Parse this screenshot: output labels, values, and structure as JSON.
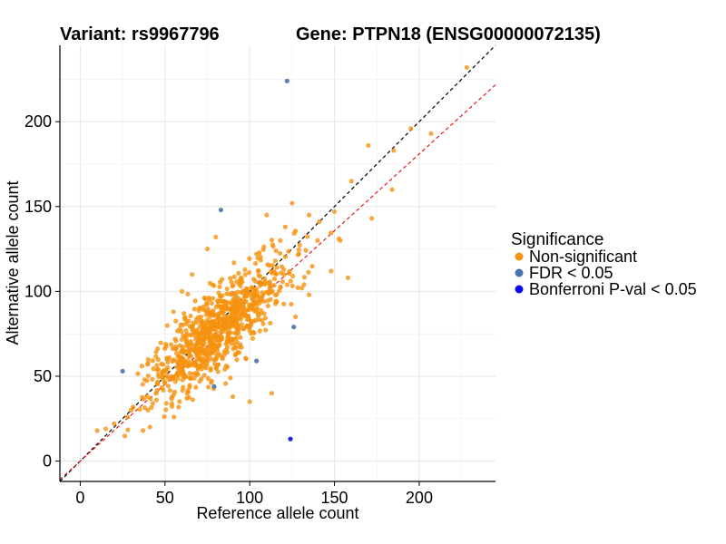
{
  "chart_data": {
    "type": "scatter",
    "title_left": "Variant: rs9967796",
    "title_right": "Gene: PTPN18 (ENSG00000072135)",
    "xlabel": "Reference allele count",
    "ylabel": "Alternative allele count",
    "xlim": [
      -12,
      245
    ],
    "ylim": [
      -12,
      245
    ],
    "xticks": [
      0,
      50,
      100,
      150,
      200
    ],
    "yticks": [
      0,
      50,
      100,
      150,
      200
    ],
    "grid": true,
    "reference_lines": [
      {
        "name": "identity",
        "slope": 1.0,
        "intercept": 0,
        "color": "#000000",
        "style": "dashed"
      },
      {
        "name": "fit",
        "slope": 0.905,
        "intercept": 0,
        "color": "#e41a1c",
        "style": "dashed"
      }
    ],
    "legend": {
      "title": "Significance",
      "placement": "right",
      "entries": [
        {
          "label": "Non-significant",
          "color": "#f5920f"
        },
        {
          "label": "FDR < 0.05",
          "color": "#4a72b0"
        },
        {
          "label": "Bonferroni P-val < 0.05",
          "color": "#0a0af0"
        }
      ]
    },
    "series": [
      {
        "name": "Non-significant",
        "color": "#f5920f",
        "generated_cloud": {
          "n": 880,
          "center": [
            82,
            78
          ],
          "sd_along": 28,
          "sd_across": 9,
          "seed": 7,
          "xmin": 5,
          "xmax": 240,
          "ymin": 10,
          "ymax": 240
        },
        "points": [
          [
            228,
            232
          ],
          [
            195,
            196
          ],
          [
            207,
            193
          ],
          [
            185,
            183
          ],
          [
            170,
            186
          ],
          [
            184,
            160
          ],
          [
            160,
            165
          ],
          [
            125,
            152
          ],
          [
            150,
            147
          ],
          [
            135,
            145
          ],
          [
            158,
            108
          ],
          [
            121,
            138
          ],
          [
            118,
            130
          ],
          [
            110,
            145
          ],
          [
            172,
            143
          ],
          [
            140,
            130
          ],
          [
            10,
            18
          ],
          [
            15,
            19
          ],
          [
            20,
            22
          ],
          [
            37,
            18
          ],
          [
            40,
            30
          ],
          [
            45,
            36
          ],
          [
            30,
            30
          ],
          [
            38,
            48
          ],
          [
            28,
            26
          ],
          [
            100,
            35
          ],
          [
            90,
            38
          ],
          [
            113,
            40
          ],
          [
            127,
            85
          ],
          [
            135,
            98
          ],
          [
            148,
            112
          ],
          [
            132,
            104
          ],
          [
            60,
            100
          ],
          [
            55,
            88
          ],
          [
            66,
            110
          ],
          [
            75,
            125
          ],
          [
            80,
            132
          ]
        ]
      },
      {
        "name": "FDR < 0.05",
        "color": "#4a72b0",
        "points": [
          [
            122,
            224
          ],
          [
            83,
            148
          ],
          [
            25,
            53
          ],
          [
            104,
            59
          ],
          [
            79,
            44
          ],
          [
            126,
            79
          ]
        ]
      },
      {
        "name": "Bonferroni P-val < 0.05",
        "color": "#0a0af0",
        "points": [
          [
            124,
            13
          ]
        ]
      }
    ]
  }
}
